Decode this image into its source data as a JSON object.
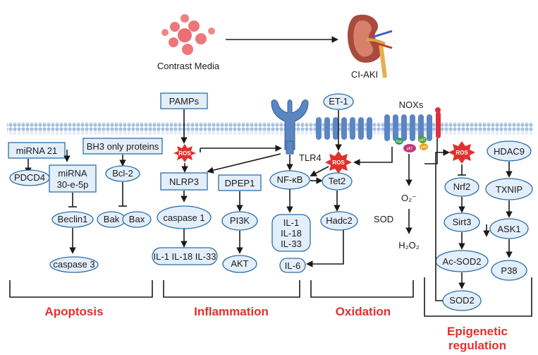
{
  "header": {
    "contrast_media": "Contrast Media",
    "ci_aki": "CI-AKI"
  },
  "membrane": {
    "receptor_tlr4": "TLR4",
    "et1": "ET-1",
    "noxs": "NOXs",
    "nox_subunits": [
      "Rac",
      "p67",
      "p47",
      "p40"
    ]
  },
  "ros_label": "ROS",
  "nodes": {
    "mirna21": "miRNA 21",
    "pdcd4": "PDCD4",
    "mirna30_line1": "miRNA",
    "mirna30_line2": "30-e-5p",
    "beclin1": "Beclin1",
    "caspase3": "caspase 3",
    "bh3": "BH3 only proteins",
    "bcl2": "Bcl-2",
    "bak": "Bak",
    "bax": "Bax",
    "pamps": "PAMPs",
    "nlrp3": "NLRP3",
    "caspase1": "caspase 1",
    "il_trio": "IL-1 IL-18 IL-33",
    "dpep1": "DPEP1",
    "pi3k": "PI3K",
    "akt": "AKT",
    "nfkb": "NF-κB",
    "il_stack": [
      "IL-1",
      "IL-18",
      "IL-33"
    ],
    "il6": "IL-6",
    "tet2": "Tet2",
    "hadc2": "Hadc2",
    "o2": "O₂⁻",
    "sod": "SOD",
    "h2o2": "H₂O₂",
    "nrf2": "Nrf2",
    "sirt3": "Sirt3",
    "acsod2": "Ac-SOD2",
    "sod2": "SOD2",
    "hdac9": "HDAC9",
    "txnip": "TXNIP",
    "ask1": "ASK1",
    "p38": "P38"
  },
  "categories": {
    "apoptosis": "Apoptosis",
    "inflammation": "Inflammation",
    "oxidation": "Oxidation",
    "epigenetic_line1": "Epigenetic",
    "epigenetic_line2": "regulation"
  },
  "colors": {
    "node_fill": "#e3eefb",
    "node_stroke": "#2b6ea6",
    "receptor": "#5b86c4",
    "membrane": "#9fb8d8",
    "ros": "#e0322d",
    "category": "#e0322d",
    "contrast_media": "#e8555a",
    "nox_red": "#d9323a"
  }
}
